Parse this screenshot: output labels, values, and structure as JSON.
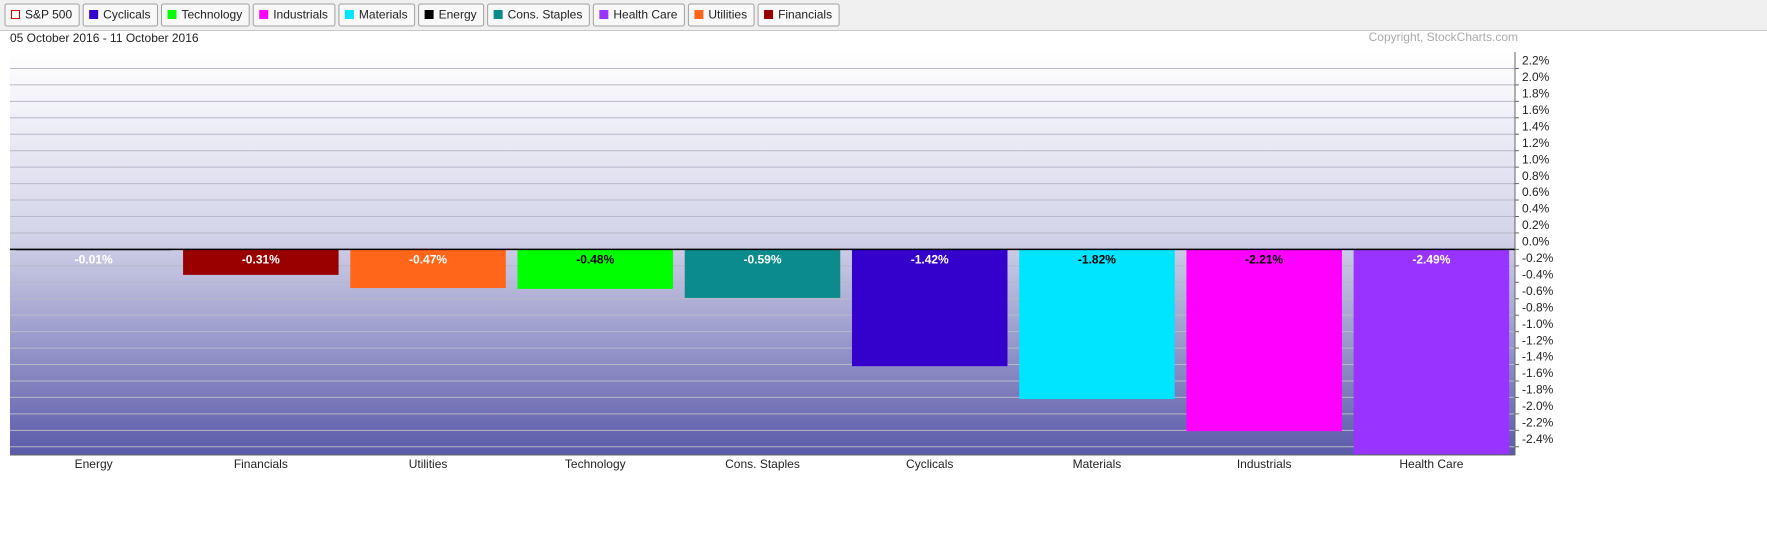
{
  "chart_data": {
    "type": "bar",
    "subtitle": "05 October 2016 - 11 October 2016",
    "annotation": "Copyright, StockCharts.com",
    "legend": [
      {
        "name": "S&P 500",
        "color": "#cc0000",
        "hollow": true
      },
      {
        "name": "Cyclicals",
        "color": "#3300cc"
      },
      {
        "name": "Technology",
        "color": "#00ff00"
      },
      {
        "name": "Industrials",
        "color": "#ff00ff"
      },
      {
        "name": "Materials",
        "color": "#00e5ff"
      },
      {
        "name": "Energy",
        "color": "#000000"
      },
      {
        "name": "Cons. Staples",
        "color": "#0b8b8b"
      },
      {
        "name": "Health Care",
        "color": "#9933ff"
      },
      {
        "name": "Utilities",
        "color": "#ff6619"
      },
      {
        "name": "Financials",
        "color": "#990000"
      }
    ],
    "categories": [
      "Energy",
      "Financials",
      "Utilities",
      "Technology",
      "Cons. Staples",
      "Cyclicals",
      "Materials",
      "Industrials",
      "Health Care"
    ],
    "values": [
      -0.01,
      -0.31,
      -0.47,
      -0.48,
      -0.59,
      -1.42,
      -1.82,
      -2.21,
      -2.49
    ],
    "value_labels": [
      "-0.01%",
      "-0.31%",
      "-0.47%",
      "-0.48%",
      "-0.59%",
      "-1.42%",
      "-1.82%",
      "-2.21%",
      "-2.49%"
    ],
    "colors": [
      "#000000",
      "#990000",
      "#ff6619",
      "#00ff00",
      "#0b8b8b",
      "#3300cc",
      "#00e5ff",
      "#ff00ff",
      "#9933ff"
    ],
    "label_colors": [
      "#ffffff",
      "#ffffff",
      "#ffffff",
      "#000000",
      "#ffffff",
      "#ffffff",
      "#000000",
      "#000000",
      "#ffffff"
    ],
    "ylim": [
      -2.5,
      2.4
    ],
    "yticks": [
      {
        "value": 2.2,
        "label": "2.2%"
      },
      {
        "value": 2.0,
        "label": "2.0%"
      },
      {
        "value": 1.8,
        "label": "1.8%"
      },
      {
        "value": 1.6,
        "label": "1.6%"
      },
      {
        "value": 1.4,
        "label": "1.4%"
      },
      {
        "value": 1.2,
        "label": "1.2%"
      },
      {
        "value": 1.0,
        "label": "1.0%"
      },
      {
        "value": 0.8,
        "label": "0.8%"
      },
      {
        "value": 0.6,
        "label": "0.6%"
      },
      {
        "value": 0.4,
        "label": "0.4%"
      },
      {
        "value": 0.2,
        "label": "0.2%"
      },
      {
        "value": 0.0,
        "label": "0.0%"
      },
      {
        "value": -0.2,
        "label": "-0.2%"
      },
      {
        "value": -0.4,
        "label": "-0.4%"
      },
      {
        "value": -0.6,
        "label": "-0.6%"
      },
      {
        "value": -0.8,
        "label": "-0.8%"
      },
      {
        "value": -1.0,
        "label": "-1.0%"
      },
      {
        "value": -1.2,
        "label": "-1.2%"
      },
      {
        "value": -1.4,
        "label": "-1.4%"
      },
      {
        "value": -1.6,
        "label": "-1.6%"
      },
      {
        "value": -1.8,
        "label": "-1.8%"
      },
      {
        "value": -2.0,
        "label": "-2.0%"
      },
      {
        "value": -2.2,
        "label": "-2.2%"
      },
      {
        "value": -2.4,
        "label": "-2.4%"
      }
    ],
    "grid": true
  }
}
